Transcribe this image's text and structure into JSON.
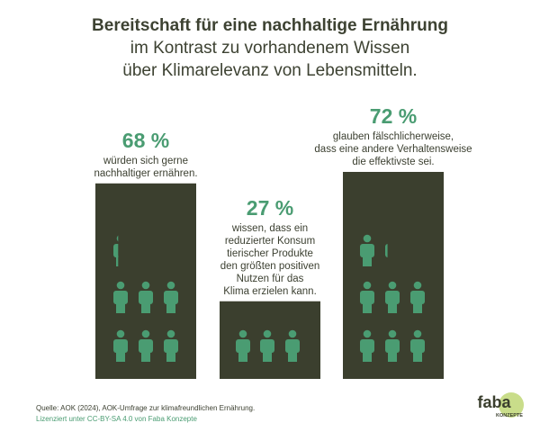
{
  "title": {
    "line1": "Bereitschaft für eine nachhaltige Ernährung",
    "line2": "im Kontrast zu vorhandenem Wissen",
    "line3": "über Klimarelevanz von Lebensmitteln."
  },
  "chart_data": {
    "type": "bar",
    "categories": [
      "würden sich gerne nachhaltiger ernähren.",
      "wissen, dass ein reduzierter Konsum tierischer Produkte den größten positiven Nutzen für das Klima erzielen kann.",
      "glauben fälschlicherweise, dass eine andere Verhaltensweise die effektivste sei."
    ],
    "values": [
      68,
      27,
      72
    ],
    "value_labels": [
      "68 %",
      "27 %",
      "72 %"
    ],
    "descriptions": [
      [
        "würden sich gerne",
        "nachhaltiger ernähren."
      ],
      [
        "wissen, dass ein",
        "reduzierter Konsum",
        "tierischer Produkte",
        "den größten positiven",
        "Nutzen für das",
        "Klima erzielen kann."
      ],
      [
        "glauben fälschlicherweise,",
        "dass eine andere Verhaltensweise",
        "die effektivste sei."
      ]
    ],
    "ylim": [
      0,
      100
    ],
    "bar_color": "#3b3f2e",
    "icon_color": "#4a9c72"
  },
  "footer": {
    "source": "Quelle: AOK (2024), AOK-Umfrage zur klimafreundlichen Ernährung.",
    "license": "Lizenziert unter CC-BY-SA 4.0 von Faba Konzepte"
  },
  "logo": {
    "word": "faba",
    "sub": "KONZEPTE",
    "circle_color": "#c9dd8a"
  }
}
